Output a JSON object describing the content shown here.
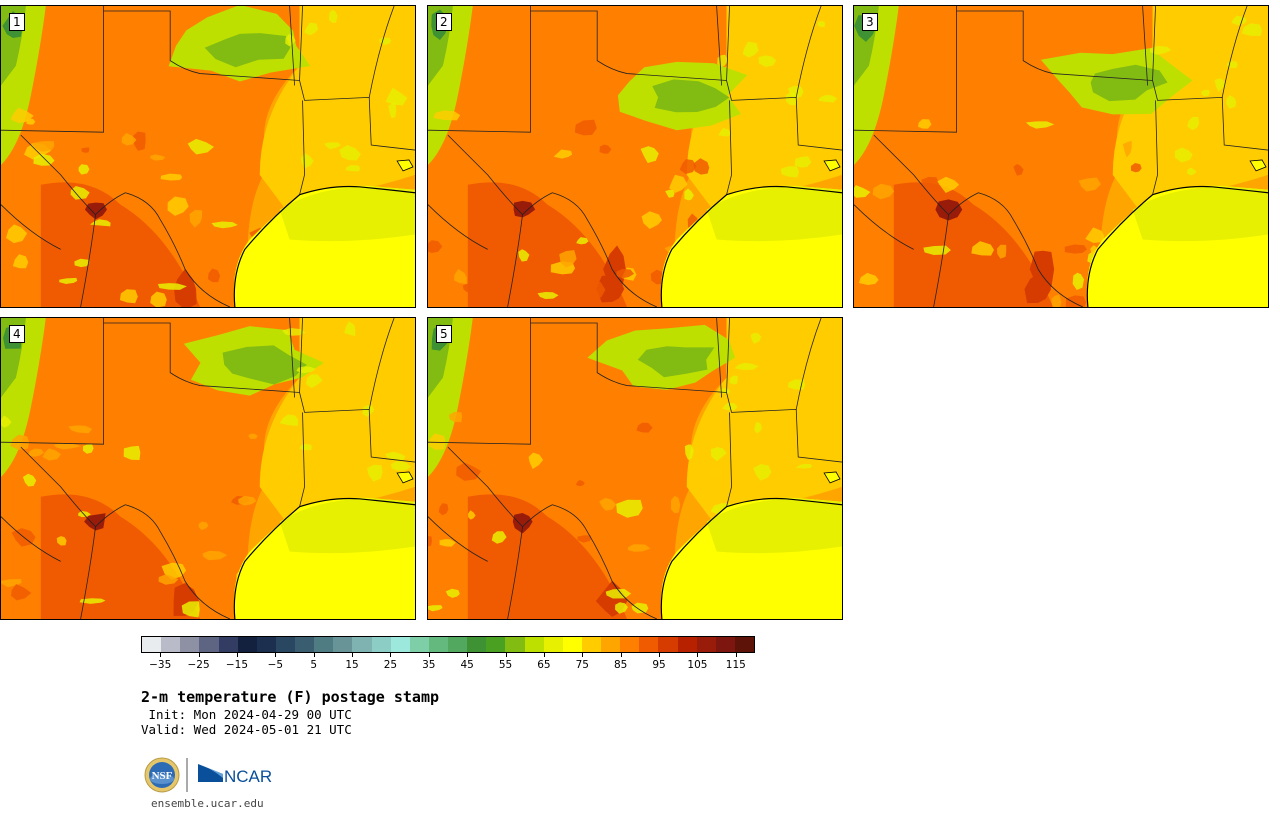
{
  "title": "2-m temperature (F) postage stamp",
  "init_line": " Init: Mon 2024-04-29 00 UTC",
  "valid_line": "Valid: Wed 2024-05-01 21 UTC",
  "website": "ensemble.ucar.edu",
  "logos": {
    "nsf_label": "NSF",
    "ncar_label": "NCAR"
  },
  "panels": [
    {
      "member": "1",
      "variant": 0
    },
    {
      "member": "2",
      "variant": 1
    },
    {
      "member": "3",
      "variant": 2
    },
    {
      "member": "4",
      "variant": 3
    },
    {
      "member": "5",
      "variant": 4
    }
  ],
  "colorbar": {
    "colors": [
      "#e9ecef",
      "#b9bcc8",
      "#8d91a3",
      "#5e6583",
      "#333d63",
      "#13213f",
      "#1c2f4e",
      "#294761",
      "#3a5e6f",
      "#4f7b83",
      "#689497",
      "#7eb3b1",
      "#8ccdc5",
      "#9de8dd",
      "#7ecfa7",
      "#64b97e",
      "#52a85f",
      "#3e9233",
      "#4aa021",
      "#82bb12",
      "#bde000",
      "#e7f000",
      "#ffff00",
      "#ffcc00",
      "#ffa500",
      "#ff7f00",
      "#f05a00",
      "#d63b00",
      "#b82100",
      "#991b0a",
      "#7d160e",
      "#5e1308"
    ],
    "tick_labels": [
      "−35",
      "−25",
      "−15",
      "−5",
      "5",
      "15",
      "25",
      "35",
      "45",
      "55",
      "65",
      "75",
      "85",
      "95",
      "105",
      "115"
    ],
    "tick_values": [
      -35,
      -25,
      -15,
      -5,
      5,
      15,
      25,
      35,
      45,
      55,
      65,
      75,
      85,
      95,
      105,
      115
    ],
    "range": [
      -40,
      120
    ],
    "unit": "F"
  }
}
